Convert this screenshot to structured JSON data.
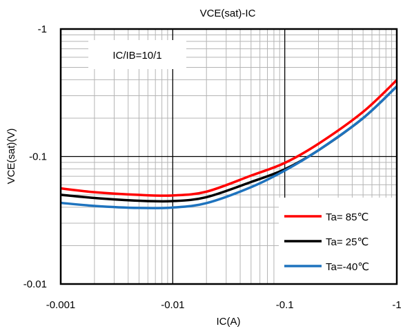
{
  "chart_data": {
    "type": "line",
    "title": "VCE(sat)-IC",
    "xlabel": "IC(A)",
    "ylabel": "VCE(sat)(V)",
    "x_scale": "log",
    "y_scale": "log",
    "xlim": [
      -0.001,
      -1
    ],
    "ylim": [
      -0.01,
      -1
    ],
    "x_ticks": [
      {
        "value": -0.001,
        "label": "-0.001"
      },
      {
        "value": -0.01,
        "label": "-0.01"
      },
      {
        "value": -0.1,
        "label": "-0.1"
      },
      {
        "value": -1,
        "label": "-1"
      }
    ],
    "y_ticks": [
      {
        "value": -0.01,
        "label": "-0.01"
      },
      {
        "value": -0.1,
        "label": "-0.1"
      },
      {
        "value": -1,
        "label": "-1"
      }
    ],
    "grid": true,
    "annotation": "IC/IB=10/1",
    "legend_position": "bottom-right",
    "series": [
      {
        "name": "Ta= 85℃",
        "color": "#ff0000",
        "x": [
          -0.001,
          -0.002,
          -0.005,
          -0.01,
          -0.02,
          -0.05,
          -0.1,
          -0.2,
          -0.5,
          -1
        ],
        "y": [
          -0.0562,
          -0.0525,
          -0.05,
          -0.0495,
          -0.053,
          -0.0708,
          -0.0891,
          -0.126,
          -0.224,
          -0.398
        ]
      },
      {
        "name": "Ta= 25℃",
        "color": "#000000",
        "x": [
          -0.001,
          -0.002,
          -0.005,
          -0.01,
          -0.02,
          -0.05,
          -0.1,
          -0.2,
          -0.5,
          -1
        ],
        "y": [
          -0.0501,
          -0.0473,
          -0.045,
          -0.0447,
          -0.048,
          -0.0631,
          -0.0794,
          -0.112,
          -0.2,
          -0.355
        ]
      },
      {
        "name": "Ta=-40℃",
        "color": "#1e73be",
        "x": [
          -0.001,
          -0.002,
          -0.005,
          -0.01,
          -0.02,
          -0.05,
          -0.1,
          -0.2,
          -0.5,
          -1
        ],
        "y": [
          -0.0433,
          -0.041,
          -0.0395,
          -0.0398,
          -0.0431,
          -0.0575,
          -0.0776,
          -0.112,
          -0.2,
          -0.355
        ]
      }
    ]
  }
}
